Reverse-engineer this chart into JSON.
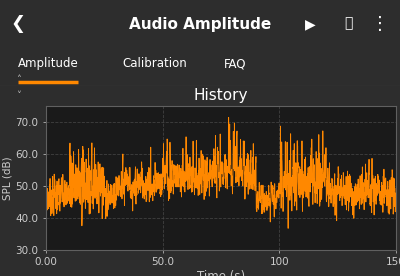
{
  "title": "History",
  "xlabel": "Time (s)",
  "ylabel": "SPL (dB)",
  "xlim": [
    0,
    150
  ],
  "ylim": [
    30.0,
    75.0
  ],
  "yticks": [
    30.0,
    40.0,
    50.0,
    60.0,
    70.0
  ],
  "xticks": [
    0.0,
    50.0,
    100,
    150
  ],
  "xtick_labels": [
    "0.00",
    "50.0",
    "100",
    "150"
  ],
  "line_color": "#FF8800",
  "bg_color": "#1a1a1a",
  "outer_bg": "#2d2d2d",
  "header_color": "#FF8800",
  "header_text": "Audio Amplitude",
  "tabs": [
    "Amplitude",
    "Calibration",
    "FAQ"
  ],
  "active_tab": 0,
  "grid_color": "#4a4a4a",
  "tick_color": "#cccccc",
  "title_color": "#ffffff",
  "label_color": "#cccccc",
  "tab_bar_bg": "#333333",
  "seed": 7
}
